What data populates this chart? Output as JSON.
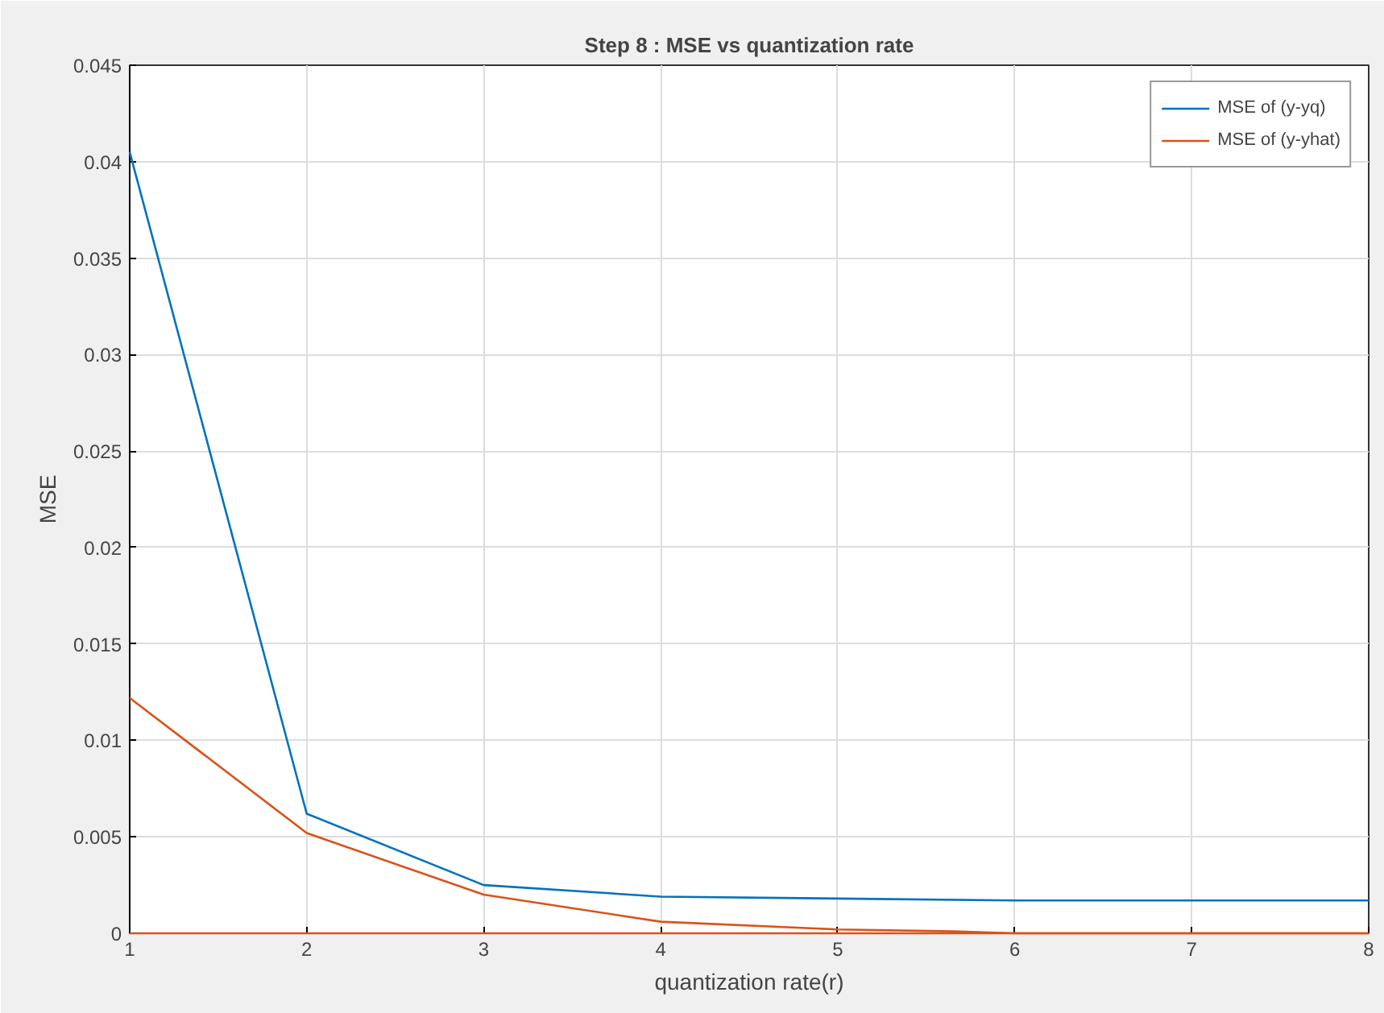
{
  "chart_data": {
    "type": "line",
    "title": "Step 8 : MSE vs quantization rate",
    "xlabel": "quantization rate(r)",
    "ylabel": "MSE",
    "x": [
      1,
      2,
      3,
      4,
      5,
      6,
      7,
      8
    ],
    "series": [
      {
        "name": "MSE of (y-yq)",
        "color": "#0072bd",
        "values": [
          0.0405,
          0.0062,
          0.0025,
          0.0019,
          0.0018,
          0.0017,
          0.0017,
          0.0017
        ]
      },
      {
        "name": "MSE of (y-yhat)",
        "color": "#d95319",
        "x": [
          1,
          2,
          3,
          4,
          5,
          5.65,
          6,
          7,
          8
        ],
        "values": [
          0.0122,
          0.0052,
          0.002,
          0.0006,
          0.0002,
          0.0001,
          0,
          0,
          0
        ]
      },
      {
        "color": "#d95319",
        "values": [
          0,
          0,
          0,
          0,
          0,
          0,
          0,
          0
        ]
      }
    ],
    "xlim": [
      1,
      8
    ],
    "ylim": [
      0,
      0.045
    ],
    "xticks": [
      1,
      2,
      3,
      4,
      5,
      6,
      7,
      8
    ],
    "yticks": [
      0,
      0.005,
      0.01,
      0.015,
      0.02,
      0.025,
      0.03,
      0.035,
      0.04,
      0.045
    ],
    "grid": true,
    "legend": "top right",
    "line_style": "solid",
    "marker": "none"
  }
}
